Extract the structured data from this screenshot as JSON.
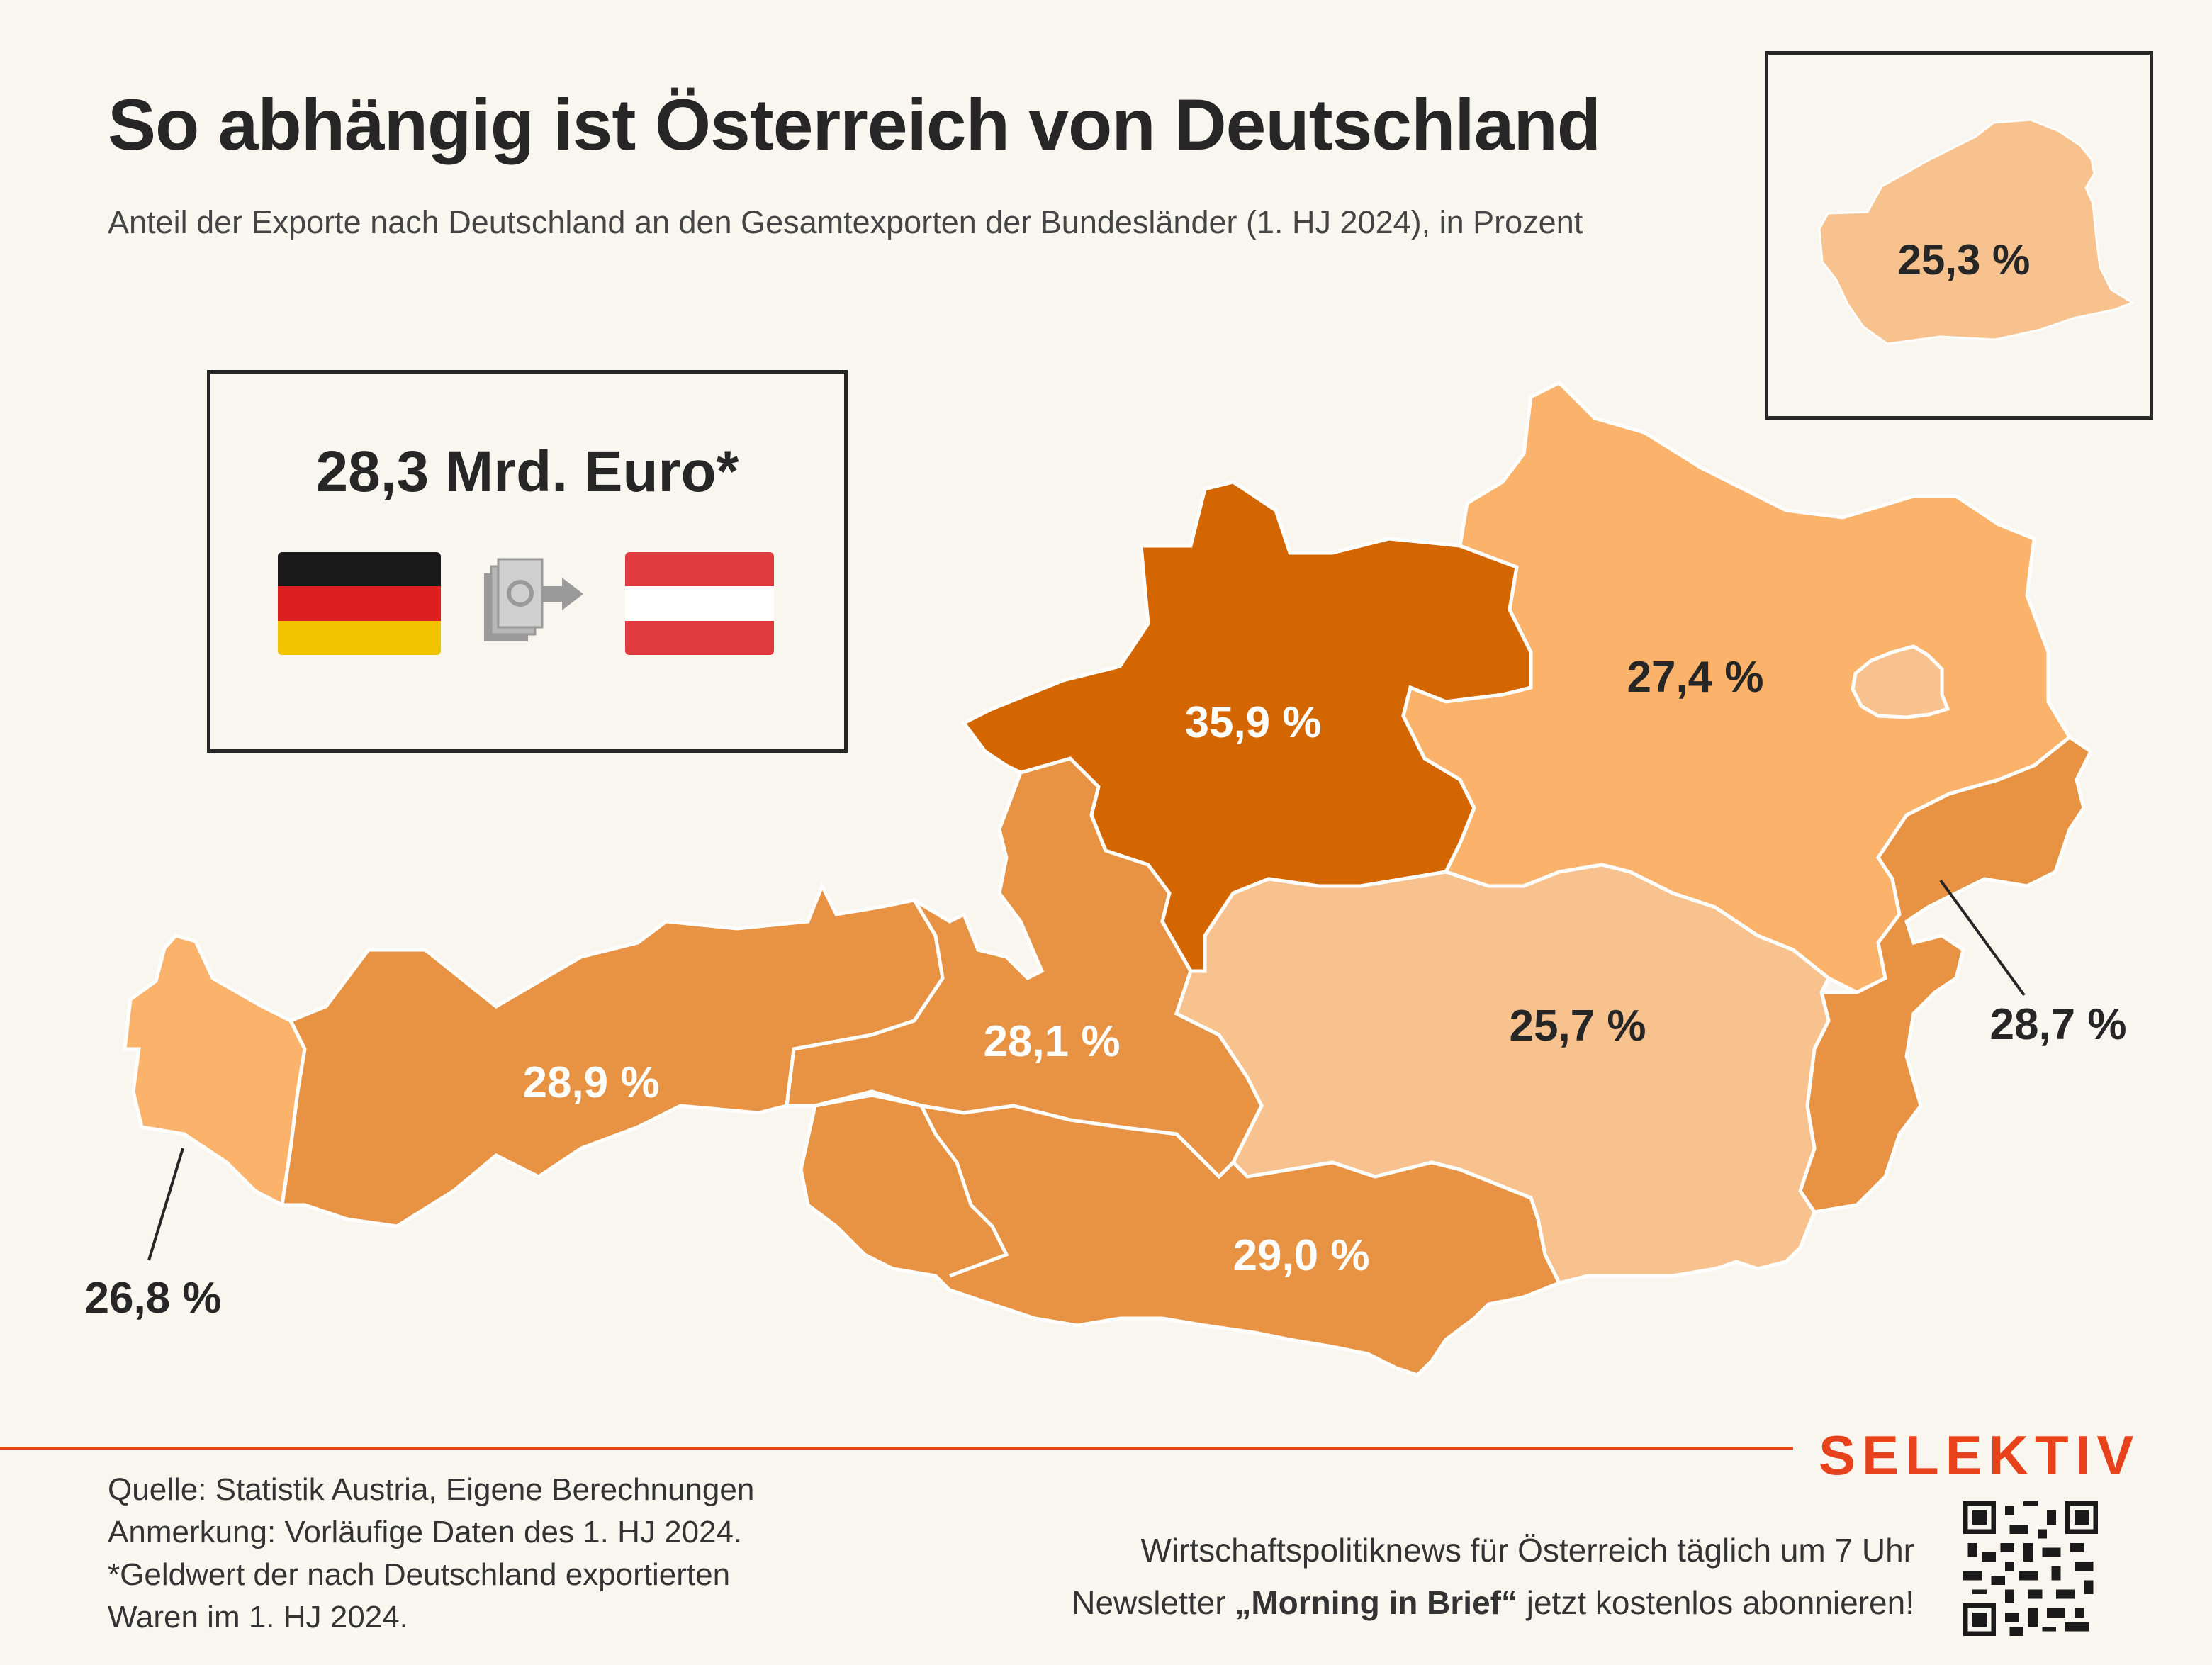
{
  "title": "So abhängig ist Österreich von Deutschland",
  "subtitle": "Anteil der Exporte nach Deutschland an den Gesamtexporten der Bundesländer (1. HJ 2024), in Prozent",
  "summary": {
    "amount": "28,3 Mrd. Euro*",
    "icons": [
      "germany-flag-icon",
      "money-transfer-icon",
      "austria-flag-icon"
    ]
  },
  "regions": [
    {
      "label": "26,8 %",
      "value": 26.8,
      "color": "#fbb26b"
    },
    {
      "label": "28,9 %",
      "value": 28.9,
      "color": "#e89243"
    },
    {
      "label": "28,1 %",
      "value": 28.1,
      "color": "#e89243"
    },
    {
      "label": "35,9 %",
      "value": 35.9,
      "color": "#d46600"
    },
    {
      "label": "27,4 %",
      "value": 27.4,
      "color": "#fbb26b"
    },
    {
      "label": "25,7 %",
      "value": 25.7,
      "color": "#f8c28f"
    },
    {
      "label": "29,0 %",
      "value": 29.0,
      "color": "#e89243"
    },
    {
      "label": "28,7 %",
      "value": 28.7,
      "color": "#e89243"
    },
    {
      "label": "25,3 %",
      "value": 25.3,
      "color": "#f8c28f"
    }
  ],
  "footer": {
    "source_lines": [
      "Quelle: Statistik Austria, Eigene Berechnungen",
      "Anmerkung: Vorläufige Daten des 1. HJ 2024.",
      "*Geldwert der nach Deutschland exportierten",
      "Waren im 1. HJ 2024."
    ],
    "brand": "SELEKTIV",
    "promo_line1": "Wirtschaftspolitiknews für Österreich täglich um 7 Uhr",
    "promo_line2_prefix": "Newsletter ",
    "promo_line2_bold": "„Morning in Brief“",
    "promo_line2_suffix": " jetzt kostenlos abonnieren!"
  }
}
